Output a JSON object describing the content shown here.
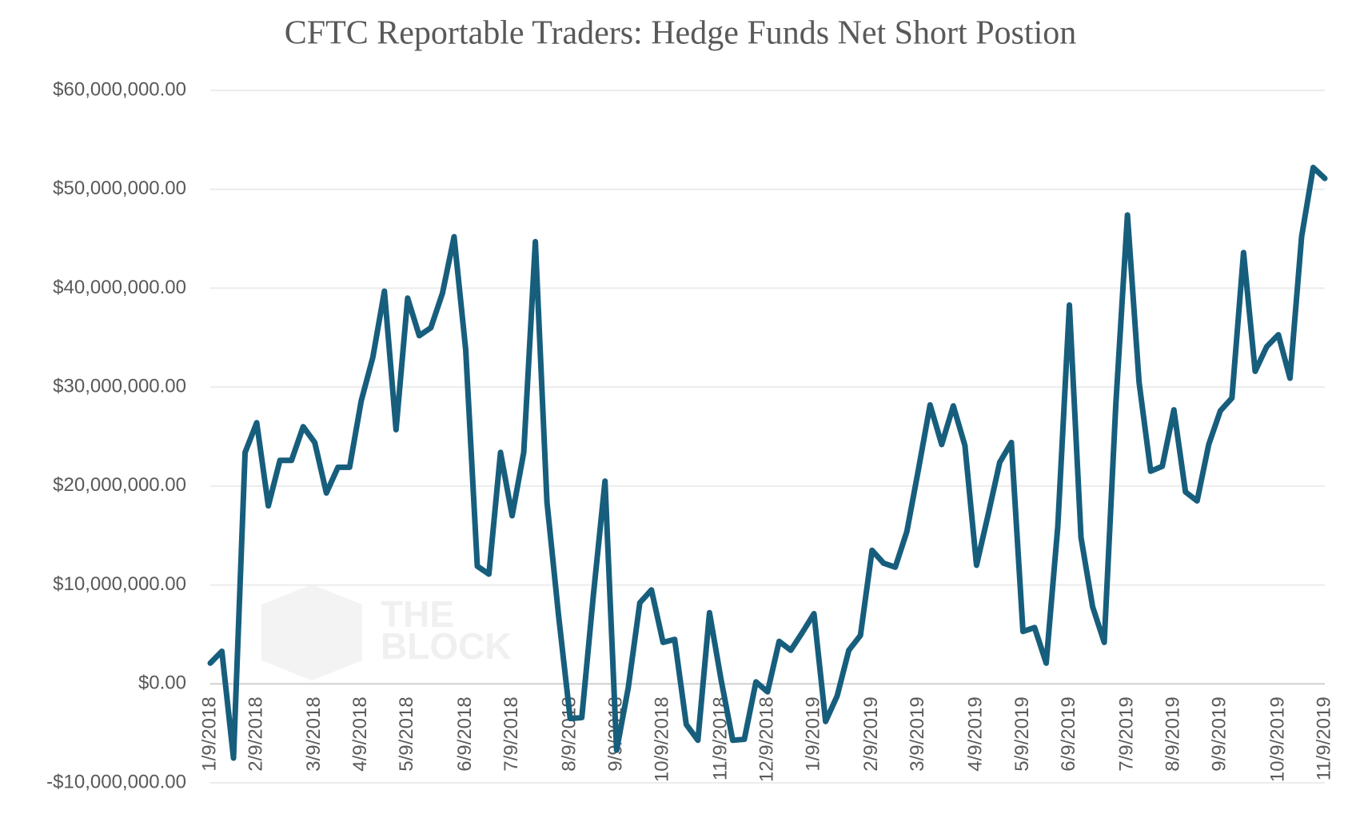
{
  "chart_data": {
    "type": "line",
    "title": "CFTC Reportable Traders: Hedge Funds Net Short Postion",
    "annotations": [
      "THE",
      "BLOCK"
    ],
    "categories": [
      "1/9/2018",
      null,
      null,
      null,
      "2/9/2018",
      null,
      null,
      null,
      null,
      "3/9/2018",
      null,
      null,
      null,
      "4/9/2018",
      null,
      null,
      null,
      "5/9/2018",
      null,
      null,
      null,
      null,
      "6/9/2018",
      null,
      null,
      null,
      "7/9/2018",
      null,
      null,
      null,
      null,
      "8/9/2018",
      null,
      null,
      null,
      "9/9/2018",
      null,
      null,
      null,
      "10/9/2018",
      null,
      null,
      null,
      null,
      "11/9/2018",
      null,
      null,
      null,
      "12/9/2018",
      null,
      null,
      null,
      "1/9/2019",
      null,
      null,
      null,
      null,
      "2/9/2019",
      null,
      null,
      null,
      "3/9/2019",
      null,
      null,
      null,
      null,
      "4/9/2019",
      null,
      null,
      null,
      "5/9/2019",
      null,
      null,
      null,
      "6/9/2019",
      null,
      null,
      null,
      null,
      "7/9/2019",
      null,
      null,
      null,
      "8/9/2019",
      null,
      null,
      null,
      "9/9/2019",
      null,
      null,
      null,
      null,
      "10/9/2019",
      null,
      null,
      null,
      "11/9/2019"
    ],
    "series": [
      {
        "name": "Hedge Funds Net Short Position",
        "color": "#175e7d",
        "values": [
          2100000,
          3300000,
          -7500000,
          23400000,
          26400000,
          18000000,
          22600000,
          22600000,
          26000000,
          24400000,
          19300000,
          21900000,
          21900000,
          28600000,
          33000000,
          39700000,
          25700000,
          39000000,
          35200000,
          36000000,
          39500000,
          45200000,
          33800000,
          11900000,
          11100000,
          23400000,
          17000000,
          23400000,
          44700000,
          18400000,
          6900000,
          -3500000,
          -3400000,
          9000000,
          20500000,
          -6700000,
          -400000,
          8200000,
          9500000,
          4200000,
          4500000,
          -4100000,
          -5700000,
          7200000,
          400000,
          -5700000,
          -5600000,
          200000,
          -800000,
          4300000,
          3400000,
          5200000,
          7100000,
          -3800000,
          -1200000,
          3400000,
          4900000,
          13500000,
          12200000,
          11800000,
          15400000,
          21700000,
          28200000,
          24200000,
          28100000,
          24100000,
          12000000,
          17100000,
          22400000,
          24400000,
          5300000,
          5700000,
          2100000,
          15900000,
          38300000,
          14800000,
          7800000,
          4200000,
          28300000,
          47400000,
          30500000,
          21500000,
          22000000,
          27700000,
          19400000,
          18500000,
          24200000,
          27600000,
          28900000,
          43600000,
          31600000,
          34100000,
          35300000,
          30900000,
          45200000,
          52200000,
          51100000
        ]
      }
    ],
    "ylim": [
      -10000000,
      60000000
    ],
    "yticks": [
      {
        "value": -10000000,
        "label": "-$10,000,000.00"
      },
      {
        "value": 0,
        "label": "$0.00"
      },
      {
        "value": 10000000,
        "label": "$10,000,000.00"
      },
      {
        "value": 20000000,
        "label": "$20,000,000.00"
      },
      {
        "value": 30000000,
        "label": "$30,000,000.00"
      },
      {
        "value": 40000000,
        "label": "$40,000,000.00"
      },
      {
        "value": 50000000,
        "label": "$50,000,000.00"
      },
      {
        "value": 60000000,
        "label": "$60,000,000.00"
      }
    ],
    "grid": true
  }
}
